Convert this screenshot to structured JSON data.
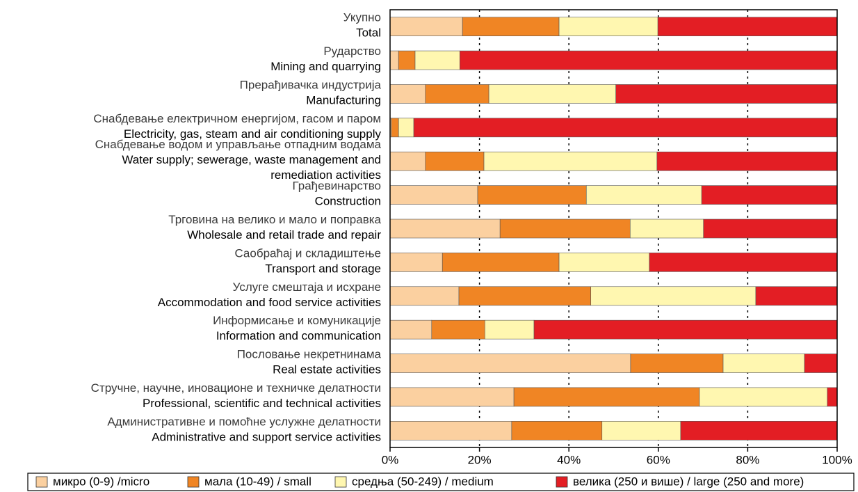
{
  "chart_data": {
    "type": "stacked-barh",
    "categories": [
      [
        "Укупно",
        "Total"
      ],
      [
        "Рударство",
        "Mining and quarrying"
      ],
      [
        "Прерађивачка индустрија",
        "Manufacturing"
      ],
      [
        "Снабдевање електричном енергијом, гасом и паром",
        "Electricity, gas, steam and air conditioning supply"
      ],
      [
        "Снабдевање водом и управљање отпадним водама",
        "Water supply; sewerage, waste management and",
        "remediation activities"
      ],
      [
        "Грађевинарство",
        "Construction"
      ],
      [
        "Трговина на велико и мало и поправка",
        "Wholesale and retail trade and repair"
      ],
      [
        "Саобраћај и складиштење",
        "Transport and storage"
      ],
      [
        "Услуге смештаја и исхране",
        "Accommodation and food service activities"
      ],
      [
        "Информисање и комуникације",
        "Information and communication"
      ],
      [
        "Пословање некретнинама",
        "Real estate activities"
      ],
      [
        "Стручне, научне, иновационе и техничке делатности",
        "Professional, scientific and technical activities"
      ],
      [
        "Административне и помоћне услужне делатности",
        "Administrative and support service activities"
      ]
    ],
    "series": [
      {
        "name": "микро (0-9) /micro",
        "color": "#fbd0a0",
        "values": [
          16.2,
          1.9,
          7.9,
          0.3,
          7.9,
          19.6,
          24.6,
          11.7,
          15.4,
          9.3,
          53.8,
          27.7,
          27.2
        ]
      },
      {
        "name": "мала (10-49) / small",
        "color": "#f08524",
        "values": [
          21.6,
          3.7,
          14.2,
          1.6,
          13.1,
          24.3,
          29.1,
          26.1,
          29.5,
          11.9,
          20.7,
          41.5,
          20.2
        ]
      },
      {
        "name": "средња (50-249) / medium",
        "color": "#fff7b0",
        "values": [
          22.1,
          10.0,
          28.4,
          3.4,
          38.7,
          25.8,
          16.4,
          20.2,
          36.9,
          11.0,
          18.2,
          28.6,
          17.6
        ]
      },
      {
        "name": "велика (250 и више) / large (250 and more)",
        "color": "#e31e24",
        "values": [
          40.1,
          84.4,
          49.5,
          94.7,
          40.3,
          30.3,
          29.9,
          42.0,
          18.2,
          67.8,
          7.3,
          2.2,
          35.0
        ]
      }
    ],
    "xlim": [
      0,
      100
    ],
    "xticks": [
      {
        "value": 0,
        "label": "0%"
      },
      {
        "value": 20,
        "label": "20%"
      },
      {
        "value": 40,
        "label": "40%"
      },
      {
        "value": 60,
        "label": "60%"
      },
      {
        "value": 80,
        "label": "80%"
      },
      {
        "value": 100,
        "label": "100%"
      }
    ],
    "grid": true,
    "legend": "bottom"
  }
}
